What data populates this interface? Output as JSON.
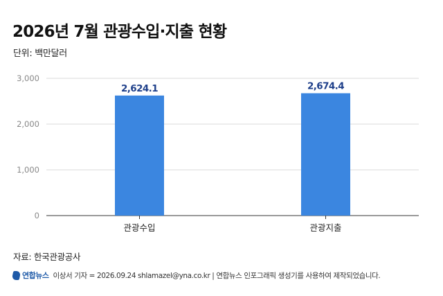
{
  "header": {
    "title": "2026년 7월 관광수입·지출 현황",
    "unit_label": "단위: 백만달러"
  },
  "chart_data": {
    "type": "bar",
    "categories": [
      "관광수입",
      "관광지출"
    ],
    "values": [
      2624.1,
      2674.4
    ],
    "data_labels": [
      "2,624.1",
      "2,674.4"
    ],
    "y_ticks": [
      0,
      1000,
      2000,
      3000
    ],
    "y_tick_labels": [
      "0",
      "1,000",
      "2,000",
      "3,000"
    ],
    "ylim": [
      0,
      3000
    ],
    "grid": true,
    "bar_color": "#3b86e0",
    "label_color": "#1e3f8a"
  },
  "source": "자료: 한국관광공사",
  "footer": {
    "logo_text": "연합뉴스",
    "credit": "이상서 기자 = 2026.09.24 shlamazel@yna.co.kr | 연합뉴스 인포그래픽 생성기를 사용하여 제작되었습니다.",
    "brand_color": "#1e5aa8"
  }
}
